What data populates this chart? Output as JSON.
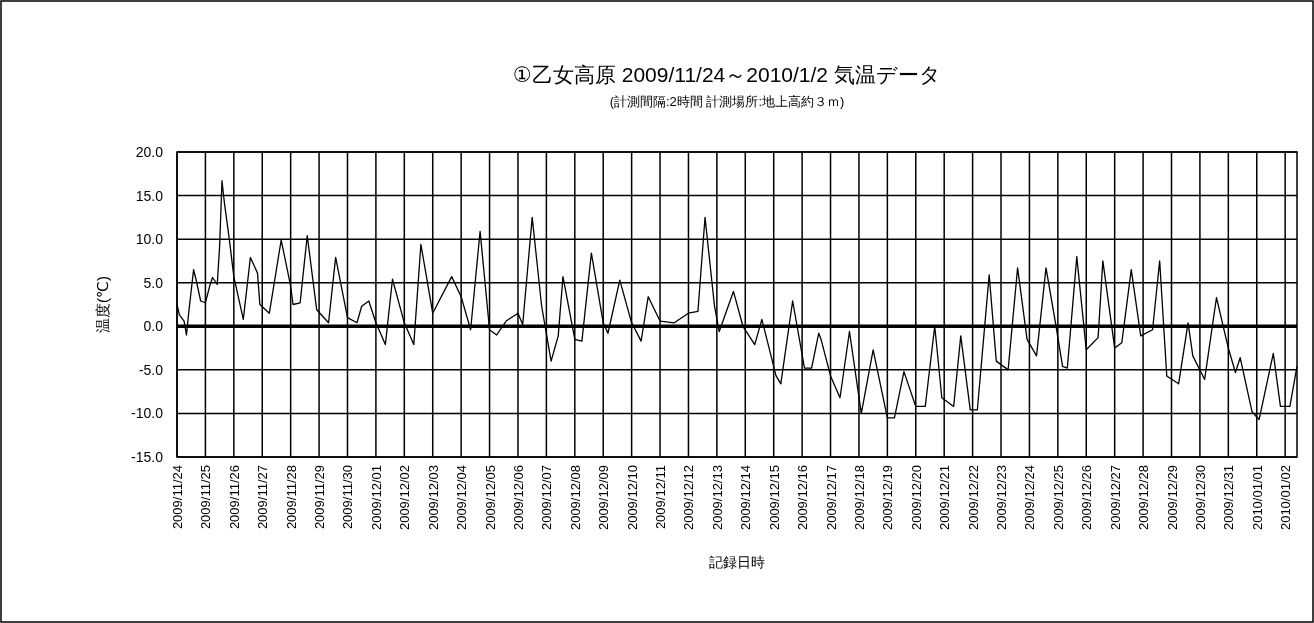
{
  "chart_data": {
    "type": "line",
    "title": "①乙女高原 2009/11/24～2010/1/2 気温データ",
    "subtitle": "(計測間隔:2時間 計測場所:地上高約３ｍ)",
    "xlabel": "記録日時",
    "ylabel": "温度(℃)",
    "color": "#000000",
    "grid": true,
    "marker": "none",
    "line_style": "solid",
    "ref_lines": [
      {
        "axis": "y",
        "value": 0,
        "color": "#000000"
      }
    ],
    "xlim": [
      "2009-11-24T00:00",
      "2010-01-02T10:00"
    ],
    "ylim": [
      -15,
      20
    ],
    "yticks": [
      {
        "value": 20,
        "label": "20.0"
      },
      {
        "value": 15,
        "label": "15.0"
      },
      {
        "value": 10,
        "label": "10.0"
      },
      {
        "value": 5,
        "label": "5.0"
      },
      {
        "value": 0,
        "label": "0.0"
      },
      {
        "value": -5,
        "label": "-5.0"
      },
      {
        "value": -10,
        "label": "-10.0"
      },
      {
        "value": -15,
        "label": "-15.0"
      }
    ],
    "xticks": [
      {
        "value": "2009-11-24",
        "label": "2009/11/24"
      },
      {
        "value": "2009-11-25",
        "label": "2009/11/25"
      },
      {
        "value": "2009-11-26",
        "label": "2009/11/26"
      },
      {
        "value": "2009-11-27",
        "label": "2009/11/27"
      },
      {
        "value": "2009-11-28",
        "label": "2009/11/28"
      },
      {
        "value": "2009-11-29",
        "label": "2009/11/29"
      },
      {
        "value": "2009-11-30",
        "label": "2009/11/30"
      },
      {
        "value": "2009-12-01",
        "label": "2009/12/01"
      },
      {
        "value": "2009-12-02",
        "label": "2009/12/02"
      },
      {
        "value": "2009-12-03",
        "label": "2009/12/03"
      },
      {
        "value": "2009-12-04",
        "label": "2009/12/04"
      },
      {
        "value": "2009-12-05",
        "label": "2009/12/05"
      },
      {
        "value": "2009-12-06",
        "label": "2009/12/06"
      },
      {
        "value": "2009-12-07",
        "label": "2009/12/07"
      },
      {
        "value": "2009-12-08",
        "label": "2009/12/08"
      },
      {
        "value": "2009-12-09",
        "label": "2009/12/09"
      },
      {
        "value": "2009-12-10",
        "label": "2009/12/10"
      },
      {
        "value": "2009-12-11",
        "label": "2009/12/11"
      },
      {
        "value": "2009-12-12",
        "label": "2009/12/12"
      },
      {
        "value": "2009-12-13",
        "label": "2009/12/13"
      },
      {
        "value": "2009-12-14",
        "label": "2009/12/14"
      },
      {
        "value": "2009-12-15",
        "label": "2009/12/15"
      },
      {
        "value": "2009-12-16",
        "label": "2009/12/16"
      },
      {
        "value": "2009-12-17",
        "label": "2009/12/17"
      },
      {
        "value": "2009-12-18",
        "label": "2009/12/18"
      },
      {
        "value": "2009-12-19",
        "label": "2009/12/19"
      },
      {
        "value": "2009-12-20",
        "label": "2009/12/20"
      },
      {
        "value": "2009-12-21",
        "label": "2009/12/21"
      },
      {
        "value": "2009-12-22",
        "label": "2009/12/22"
      },
      {
        "value": "2009-12-23",
        "label": "2009/12/23"
      },
      {
        "value": "2009-12-24",
        "label": "2009/12/24"
      },
      {
        "value": "2009-12-25",
        "label": "2009/12/25"
      },
      {
        "value": "2009-12-26",
        "label": "2009/12/26"
      },
      {
        "value": "2009-12-27",
        "label": "2009/12/27"
      },
      {
        "value": "2009-12-28",
        "label": "2009/12/28"
      },
      {
        "value": "2009-12-29",
        "label": "2009/12/29"
      },
      {
        "value": "2009-12-30",
        "label": "2009/12/30"
      },
      {
        "value": "2009-12-31",
        "label": "2009/12/31"
      },
      {
        "value": "2010-01-01",
        "label": "2010/01/01"
      },
      {
        "value": "2010-01-02",
        "label": "2010/01/02"
      }
    ],
    "x": [
      "2009-11-24T00:00",
      "2009-11-24T02:00",
      "2009-11-24T06:00",
      "2009-11-24T08:00",
      "2009-11-24T10:00",
      "2009-11-24T14:00",
      "2009-11-24T16:00",
      "2009-11-24T20:00",
      "2009-11-25T00:00",
      "2009-11-25T04:00",
      "2009-11-25T06:00",
      "2009-11-25T10:00",
      "2009-11-25T12:00",
      "2009-11-25T14:00",
      "2009-11-25T16:00",
      "2009-11-25T20:00",
      "2009-11-26T00:00",
      "2009-11-26T08:00",
      "2009-11-26T14:00",
      "2009-11-26T20:00",
      "2009-11-26T22:00",
      "2009-11-27T06:00",
      "2009-11-27T16:00",
      "2009-11-28T00:00",
      "2009-11-28T02:00",
      "2009-11-28T08:00",
      "2009-11-28T14:00",
      "2009-11-28T22:00",
      "2009-11-29T08:00",
      "2009-11-29T14:00",
      "2009-11-30T00:00",
      "2009-11-30T08:00",
      "2009-11-30T12:00",
      "2009-11-30T18:00",
      "2009-12-01T00:00",
      "2009-12-01T08:00",
      "2009-12-01T14:00",
      "2009-12-02T00:00",
      "2009-12-02T08:00",
      "2009-12-02T14:00",
      "2009-12-03T00:00",
      "2009-12-03T16:00",
      "2009-12-04T00:00",
      "2009-12-04T08:00",
      "2009-12-04T16:00",
      "2009-12-05T00:00",
      "2009-12-05T06:00",
      "2009-12-05T14:00",
      "2009-12-06T00:00",
      "2009-12-06T04:00",
      "2009-12-06T12:00",
      "2009-12-06T20:00",
      "2009-12-07T04:00",
      "2009-12-07T10:00",
      "2009-12-07T14:00",
      "2009-12-08T00:00",
      "2009-12-08T06:00",
      "2009-12-08T14:00",
      "2009-12-09T00:00",
      "2009-12-09T04:00",
      "2009-12-09T14:00",
      "2009-12-10T00:00",
      "2009-12-10T08:00",
      "2009-12-10T14:00",
      "2009-12-11T00:00",
      "2009-12-11T12:00",
      "2009-12-12T00:00",
      "2009-12-12T08:00",
      "2009-12-12T14:00",
      "2009-12-12T22:00",
      "2009-12-13T02:00",
      "2009-12-13T14:00",
      "2009-12-13T22:00",
      "2009-12-14T08:00",
      "2009-12-14T14:00",
      "2009-12-15T02:00",
      "2009-12-15T06:00",
      "2009-12-15T16:00",
      "2009-12-16T02:00",
      "2009-12-16T08:00",
      "2009-12-16T14:00",
      "2009-12-16T16:00",
      "2009-12-17T00:00",
      "2009-12-17T08:00",
      "2009-12-17T16:00",
      "2009-12-18T02:00",
      "2009-12-18T12:00",
      "2009-12-19T00:00",
      "2009-12-19T06:00",
      "2009-12-19T14:00",
      "2009-12-20T00:00",
      "2009-12-20T08:00",
      "2009-12-20T16:00",
      "2009-12-20T18:00",
      "2009-12-20T22:00",
      "2009-12-21T08:00",
      "2009-12-21T14:00",
      "2009-12-21T22:00",
      "2009-12-22T04:00",
      "2009-12-22T14:00",
      "2009-12-22T20:00",
      "2009-12-23T06:00",
      "2009-12-23T14:00",
      "2009-12-23T22:00",
      "2009-12-24T06:00",
      "2009-12-24T14:00",
      "2009-12-24T22:00",
      "2009-12-25T04:00",
      "2009-12-25T08:00",
      "2009-12-25T16:00",
      "2009-12-26T00:00",
      "2009-12-26T10:00",
      "2009-12-26T14:00",
      "2009-12-27T00:00",
      "2009-12-27T06:00",
      "2009-12-27T14:00",
      "2009-12-27T22:00",
      "2009-12-28T08:00",
      "2009-12-28T14:00",
      "2009-12-28T20:00",
      "2009-12-29T06:00",
      "2009-12-29T14:00",
      "2009-12-29T18:00",
      "2009-12-30T04:00",
      "2009-12-30T14:00",
      "2009-12-31T00:00",
      "2009-12-31T06:00",
      "2009-12-31T10:00",
      "2009-12-31T20:00",
      "2010-01-01T02:00",
      "2010-01-01T14:00",
      "2010-01-01T20:00",
      "2010-01-02T04:00",
      "2010-01-02T10:00"
    ],
    "values": [
      2.5,
      1.3,
      0.6,
      -1.0,
      1.7,
      6.5,
      5.4,
      2.9,
      2.7,
      4.8,
      5.6,
      4.8,
      9.2,
      16.7,
      14.2,
      10.2,
      5.7,
      0.8,
      7.9,
      6.1,
      2.5,
      1.5,
      9.9,
      4.6,
      2.5,
      2.7,
      10.4,
      1.9,
      0.4,
      7.9,
      1.0,
      0.4,
      2.3,
      2.9,
      0.4,
      -2.1,
      5.4,
      0.4,
      -2.1,
      9.4,
      1.5,
      5.7,
      3.4,
      -0.4,
      10.9,
      -0.4,
      -1.0,
      0.6,
      1.5,
      0.2,
      12.5,
      2.3,
      -4.0,
      -1.1,
      5.7,
      -1.5,
      -1.7,
      8.4,
      0.4,
      -0.8,
      5.3,
      0.4,
      -1.7,
      3.4,
      0.6,
      0.4,
      1.5,
      1.7,
      12.5,
      2.3,
      -0.6,
      4.0,
      0.0,
      -2.1,
      0.8,
      -5.7,
      -6.6,
      2.9,
      -4.8,
      -4.8,
      -0.8,
      -1.5,
      -5.7,
      -8.2,
      -0.6,
      -10.0,
      -2.7,
      -10.5,
      -10.5,
      -5.2,
      -9.2,
      -9.2,
      0.0,
      -2.7,
      -8.2,
      -9.2,
      -1.1,
      -9.6,
      -9.6,
      5.9,
      -4.0,
      -5.0,
      6.7,
      -1.5,
      -3.4,
      6.7,
      0.4,
      -4.6,
      -4.8,
      8.0,
      -2.7,
      -1.3,
      7.5,
      -2.5,
      -1.9,
      6.5,
      -1.1,
      -0.4,
      7.5,
      -5.7,
      -6.6,
      0.4,
      -3.4,
      -6.1,
      3.3,
      -2.5,
      -5.3,
      -3.6,
      -9.8,
      -10.7,
      -3.1,
      -9.2,
      -9.2,
      -4.6
    ]
  }
}
